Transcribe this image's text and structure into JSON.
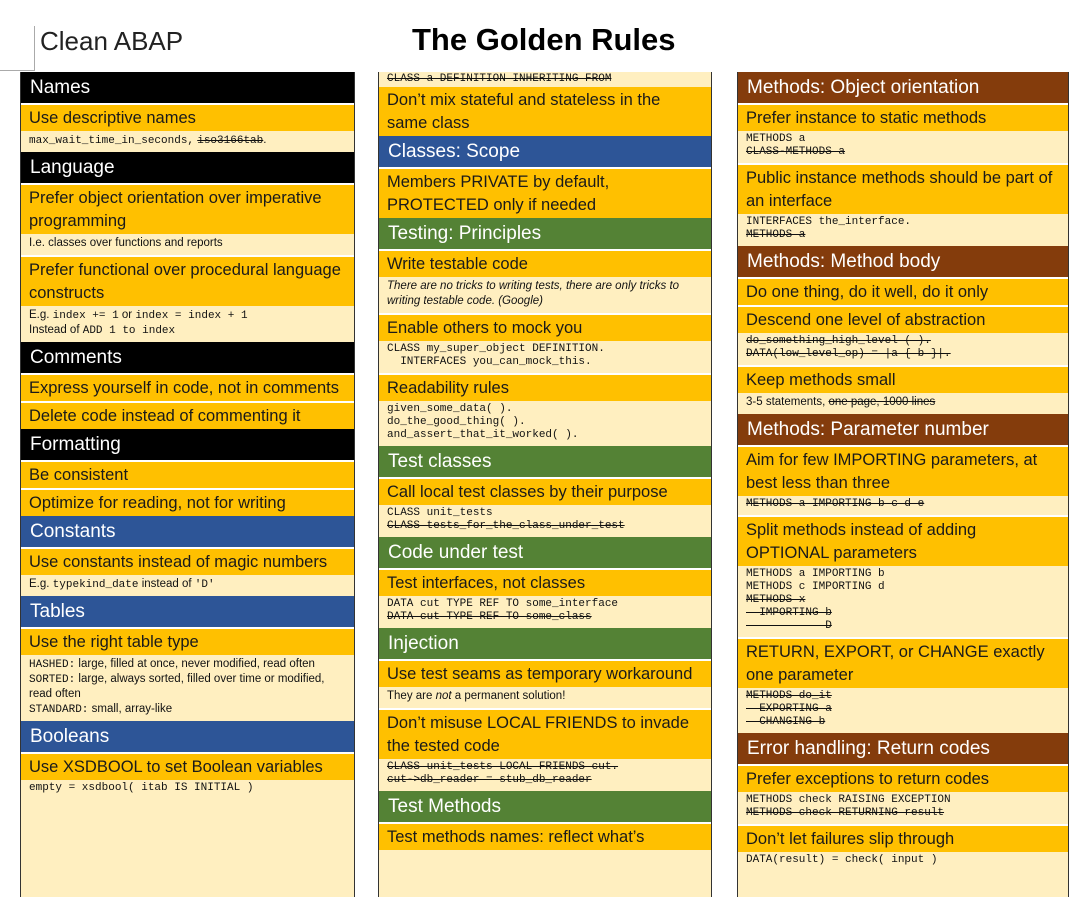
{
  "header": {
    "app": "Clean ABAP",
    "title": "The Golden Rules"
  },
  "col1": {
    "names": {
      "title": "Names",
      "r1_title": "Use descriptive names",
      "r1_code": "max_wait_time_in_seconds,",
      "r1_bad": "iso3166tab",
      "r1_end": "."
    },
    "language": {
      "title": "Language",
      "r1_title": "Prefer object orientation over imperative programming",
      "r1_note": "I.e. classes over functions and reports",
      "r2_title": "Prefer functional over procedural language constructs",
      "r2_e1": "E.g.",
      "r2_c1": "index += 1",
      "r2_e2": "or",
      "r2_c2": "index = index + 1",
      "r2_e3": "Instead of",
      "r2_c3": "ADD 1 to index"
    },
    "comments": {
      "title": "Comments",
      "r1_title": "Express yourself in code, not in comments",
      "r2_title": "Delete code instead of commenting it"
    },
    "formatting": {
      "title": "Formatting",
      "r1_title": "Be consistent",
      "r2_title": "Optimize for reading, not for writing"
    },
    "constants": {
      "title": "Constants",
      "r1_title": "Use constants instead of magic numbers",
      "r1_e1": "E.g.",
      "r1_c1": "typekind_date",
      "r1_e2": "instead of",
      "r1_c2": "'D'"
    },
    "tables": {
      "title": "Tables",
      "r1_title": "Use the right table type",
      "h_k": "HASHED:",
      "h_v": "large, filled at once, never modified, read often",
      "s_k": "SORTED:",
      "s_v": "large, always sorted, filled over time or modified, read often",
      "st_k": "STANDARD:",
      "st_v": "small, array-like"
    },
    "booleans": {
      "title": "Booleans",
      "r1_title": "Use XSDBOOL to set Boolean variables",
      "r1_code": "empty = xsdbool( itab IS INITIAL )"
    }
  },
  "col2": {
    "cont_code": "CLASS a DEFINITION INHERITING FROM",
    "cont_title": "Don’t mix stateful and stateless in the same class",
    "scope": {
      "title": "Classes: Scope",
      "r1_title": "Members PRIVATE by default, PROTECTED only if needed"
    },
    "testing": {
      "title": "Testing: Principles",
      "r1_title": "Write testable code",
      "r1_note": "There are no tricks to writing tests, there are only tricks to writing testable code. (Google)",
      "r2_title": "Enable others to mock you",
      "r2_code": "CLASS my_super_object DEFINITION.\n  INTERFACES you_can_mock_this.",
      "r3_title": "Readability rules",
      "r3_code": "given_some_data( ).\ndo_the_good_thing( ).\nand_assert_that_it_worked( )."
    },
    "testclasses": {
      "title": "Test classes",
      "r1_title": "Call local test classes by their purpose",
      "r1_good": "CLASS unit_tests",
      "r1_bad": "CLASS tests_for_the_class_under_test"
    },
    "cut": {
      "title": "Code under test",
      "r1_title": "Test interfaces, not classes",
      "r1_good": "DATA cut TYPE REF TO some_interface",
      "r1_bad": "DATA cut TYPE REF TO some_class"
    },
    "injection": {
      "title": "Injection",
      "r1_title": "Use test seams as temporary workaround",
      "r1_n1": "They are",
      "r1_n2": "not",
      "r1_n3": "a permanent solution!",
      "r2_title": "Don’t misuse LOCAL FRIENDS to invade the tested code",
      "r2_bad": "CLASS unit_tests LOCAL FRIENDS cut.\ncut->db_reader = stub_db_reader"
    },
    "testmethods": {
      "title": "Test Methods",
      "r1_title": "Test methods names: reflect what’s"
    }
  },
  "col3": {
    "oo": {
      "title": "Methods: Object orientation",
      "r1_title": "Prefer instance to static methods",
      "r1_good": "METHODS a",
      "r1_bad": "CLASS-METHODS a",
      "r2_title": "Public instance methods should be part of an interface",
      "r2_good": "INTERFACES the_interface.",
      "r2_bad": "METHODS a"
    },
    "body": {
      "title": "Methods: Method body",
      "r1_title": "Do one thing, do it well, do it only",
      "r2_title": "Descend one level of abstraction",
      "r2_bad": "do_something_high_level ( ).\nDATA(low_level_op) = |a { b }|.",
      "r3_title": "Keep methods small",
      "r3_note": "3-5 statements,",
      "r3_bad": "one page, 1000 lines"
    },
    "params": {
      "title": "Methods: Parameter number",
      "r1_title": "Aim for few IMPORTING parameters, at best less than three",
      "r1_bad": "METHODS a IMPORTING b c d e",
      "r2_title": "Split methods instead of adding OPTIONAL parameters",
      "r2_good": "METHODS a IMPORTING b\nMETHODS c IMPORTING d",
      "r2_bad": "METHODS x\n  IMPORTING b\n            D",
      "r3_title": "RETURN, EXPORT, or CHANGE exactly one parameter",
      "r3_bad": "METHODS do_it\n  EXPORTING a\n  CHANGING b"
    },
    "errors": {
      "title": "Error handling: Return codes",
      "r1_title": "Prefer exceptions to return codes",
      "r1_good": "METHODS check RAISING EXCEPTION",
      "r1_bad": "METHODS check RETURNING result",
      "r2_title": "Don’t let failures slip through",
      "r2_code": "DATA(result) = check( input )"
    }
  }
}
